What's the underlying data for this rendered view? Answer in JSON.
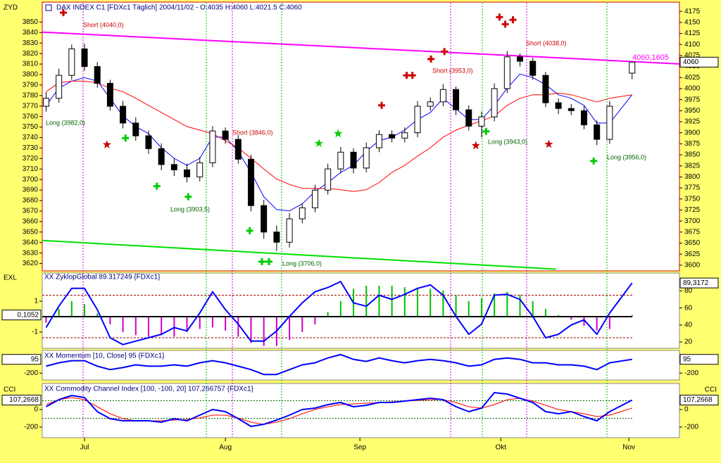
{
  "chart_data": [
    {
      "type": "candlestick",
      "title": "DAX INDEX C1 [FDXc1  Täglich] 2004/11/02 - O:4035 H:4060 L:4021.5 C:4060",
      "ylabel": "ZYD",
      "x": [
        -6,
        -4,
        -2,
        0,
        2,
        4,
        6,
        8,
        10,
        12,
        14,
        16,
        18,
        20,
        22,
        24,
        26,
        28,
        30,
        32,
        34,
        36,
        38,
        40,
        42,
        44,
        46,
        48,
        50,
        52,
        54,
        56,
        58,
        60,
        62,
        64,
        66,
        68,
        70,
        72,
        74,
        76,
        78,
        80,
        82,
        85.5
      ],
      "open": [
        3960,
        3978,
        4030,
        4090,
        4050,
        4012,
        3960,
        3922,
        3893,
        3864,
        3828,
        3816,
        3800,
        3832,
        3904,
        3885,
        3840,
        3735,
        3675,
        3652,
        3705,
        3730,
        3770,
        3818,
        3856,
        3820,
        3866,
        3896,
        3888,
        3900,
        3960,
        3970,
        3998,
        3952,
        3915,
        3936,
        4000,
        4072,
        4062,
        4030,
        3968,
        3955,
        3950,
        3918,
        3885,
        4035
      ],
      "high": [
        3992,
        4045,
        4100,
        4102,
        4060,
        4020,
        3972,
        3935,
        3905,
        3876,
        3842,
        3830,
        3845,
        3915,
        3912,
        3895,
        3850,
        3748,
        3690,
        3718,
        3740,
        3782,
        3830,
        3868,
        3865,
        3878,
        3906,
        3905,
        3912,
        3972,
        3980,
        4010,
        4005,
        3962,
        3948,
        4012,
        4085,
        4080,
        4070,
        4038,
        3978,
        3965,
        3960,
        3928,
        3972,
        4060
      ],
      "low": [
        3948,
        3968,
        4020,
        4040,
        4002,
        3950,
        3910,
        3882,
        3852,
        3815,
        3802,
        3788,
        3790,
        3822,
        3875,
        3830,
        3722,
        3660,
        3632,
        3640,
        3695,
        3720,
        3760,
        3808,
        3808,
        3810,
        3856,
        3878,
        3878,
        3890,
        3950,
        3960,
        3940,
        3905,
        3890,
        3926,
        3990,
        4050,
        4020,
        3958,
        3942,
        3940,
        3908,
        3872,
        3875,
        4021.5
      ],
      "close": [
        3978,
        4030,
        4090,
        4050,
        4012,
        3960,
        3922,
        3893,
        3864,
        3828,
        3816,
        3800,
        3832,
        3904,
        3885,
        3840,
        3735,
        3675,
        3652,
        3705,
        3730,
        3770,
        3818,
        3856,
        3820,
        3866,
        3896,
        3888,
        3900,
        3960,
        3970,
        3998,
        3952,
        3915,
        3936,
        4000,
        4072,
        4062,
        4030,
        3968,
        3955,
        3950,
        3918,
        3885,
        3960,
        4060
      ],
      "candle_up_color": "#ffffff",
      "candle_down_color": "#000000",
      "series": [
        {
          "color": "#0000ff",
          "axis": "y2",
          "values": [
            3962,
            4001,
            4017,
            4025,
            4017,
            3978,
            3938,
            3914,
            3898,
            3866,
            3842,
            3826,
            3842,
            3890,
            3890,
            3858,
            3810,
            3755,
            3726,
            3723,
            3739,
            3767,
            3787,
            3810,
            3826,
            3858,
            3882,
            3890,
            3906,
            3930,
            3946,
            3978,
            3954,
            3930,
            3930,
            3962,
            4001,
            4033,
            4025,
            4009,
            3986,
            3978,
            3962,
            3922,
            3922,
            3986
          ]
        },
        {
          "color": "#ff0000",
          "axis": "y2",
          "values": [
            3993,
            4013,
            4017,
            4017,
            4013,
            4001,
            3993,
            3978,
            3962,
            3946,
            3930,
            3914,
            3906,
            3898,
            3882,
            3866,
            3842,
            3818,
            3795,
            3783,
            3774,
            3774,
            3774,
            3771,
            3767,
            3771,
            3787,
            3810,
            3826,
            3847,
            3866,
            3890,
            3906,
            3917,
            3927,
            3938,
            3962,
            3978,
            3986,
            3986,
            3990,
            3986,
            3978,
            3970,
            3978,
            3986
          ]
        }
      ],
      "lines": [
        {
          "color": "#ff00ff",
          "axis": "y2",
          "x": [
            -6.6,
            92.9
          ],
          "values": [
            4128,
            4056
          ]
        },
        {
          "color": "#00e000",
          "axis": "y2",
          "x": [
            -6.6,
            73.6
          ],
          "values": [
            3656,
            3591
          ]
        }
      ],
      "line_label": {
        "value": 4060.1605,
        "label": "4060,1605",
        "color": "#ff00ff"
      },
      "markers": [
        {
          "shape": "plus",
          "color": "#cc0000",
          "x": [
            -3.3,
            46.4,
            50.3,
            51.2,
            54.1,
            56.2,
            64.8,
            65.7,
            66.9
          ],
          "values": [
            4172,
            3962,
            4030,
            4030,
            4067,
            4084,
            4162,
            4146,
            4156
          ]
        },
        {
          "shape": "plus",
          "color": "#00cc00",
          "x": [
            6.4,
            11.3,
            16.2,
            25.8,
            27.7,
            28.8,
            62.7,
            79.5
          ],
          "values": [
            3888,
            3779,
            3755,
            3678,
            3608,
            3608,
            3903,
            3836
          ]
        },
        {
          "shape": "star",
          "color": "#cc0000",
          "x": [
            3.5,
            61.1,
            72.5
          ],
          "values": [
            3873,
            3871,
            3874
          ]
        },
        {
          "shape": "star",
          "color": "#00cc00",
          "x": [
            36.6,
            39.6
          ],
          "values": [
            3876,
            3898
          ]
        }
      ],
      "annotations": [
        {
          "text": "Short (4040,0)",
          "color": "#cc0000"
        },
        {
          "text": "Long (3982,0)",
          "color": "#006600"
        },
        {
          "text": "Long (3903,5)",
          "color": "#006600"
        },
        {
          "text": "Short (3846,0)",
          "color": "#cc0000"
        },
        {
          "text": "Long (3706,0)",
          "color": "#006600"
        },
        {
          "text": "Short (3953,0)",
          "color": "#cc0000"
        },
        {
          "text": "Long (3943,0)",
          "color": "#006600"
        },
        {
          "text": "Short (4038,0)",
          "color": "#cc0000"
        },
        {
          "text": "Long (3956,0)",
          "color": "#006600"
        }
      ],
      "xlim": [
        -6.6,
        92.9
      ],
      "xticks": [
        {
          "value": 0,
          "label": "Jul"
        },
        {
          "value": 22,
          "label": "Aug"
        },
        {
          "value": 43,
          "label": "Sep"
        },
        {
          "value": 65,
          "label": "Okt"
        },
        {
          "value": 85,
          "label": "Nov"
        }
      ],
      "ylim": [
        3613,
        3869
      ],
      "yticks": [
        3620,
        3630,
        3640,
        3650,
        3660,
        3670,
        3680,
        3690,
        3700,
        3710,
        3720,
        3730,
        3740,
        3750,
        3760,
        3770,
        3780,
        3790,
        3800,
        3810,
        3820,
        3830,
        3840,
        3850
      ],
      "y2lim": [
        3587,
        4196
      ],
      "y2ticks": [
        3600,
        3625,
        3650,
        3675,
        3700,
        3725,
        3750,
        3775,
        3800,
        3825,
        3850,
        3875,
        3900,
        3925,
        3950,
        3975,
        4000,
        4025,
        4050,
        4075,
        4100,
        4125,
        4150,
        4175
      ]
    },
    {
      "type": "oscillator",
      "title": "XX ZyklopGlobal 89.317249 {FDXc1}",
      "ylabel": "EXL",
      "ylim": [
        -2.05,
        2.82
      ],
      "yticks": [
        1,
        -1
      ],
      "y2lim": [
        12.6,
        101
      ],
      "y2ticks": [
        80,
        60,
        40,
        20
      ],
      "levels": [
        75,
        25
      ],
      "level_color": "#990000",
      "histogram": {
        "pos_color": "#00c000",
        "neg_color": "#cc00cc",
        "values": [
          -0.4,
          0.5,
          1.0,
          0.8,
          0.2,
          -0.5,
          -1.0,
          -1.2,
          -1.3,
          -1.2,
          -1.3,
          -1.0,
          -0.8,
          -0.7,
          -0.9,
          -1.3,
          -1.7,
          -1.9,
          -1.9,
          -1.5,
          -1.0,
          -0.5,
          0.3,
          1.0,
          1.8,
          2.0,
          2.0,
          2.0,
          1.9,
          1.8,
          1.8,
          1.7,
          1.4,
          1.0,
          1.2,
          1.5,
          1.6,
          1.4,
          1.0,
          0.5,
          0.1,
          -0.2,
          -0.6,
          -0.9,
          -0.8,
          0.1052
        ],
        "current": {
          "value": 0.1052,
          "label": "0,1052"
        }
      },
      "series": [
        {
          "color": "#0000ff",
          "axis": "y2",
          "values": [
            37,
            62,
            83,
            83,
            58,
            25,
            17,
            21,
            25,
            29,
            37,
            33,
            54,
            79,
            58,
            41,
            21,
            21,
            33,
            50,
            66,
            79,
            84,
            91,
            66,
            62,
            75,
            70,
            76,
            83,
            87,
            75,
            50,
            29,
            41,
            75,
            76,
            70,
            50,
            25,
            29,
            40,
            46,
            29,
            54,
            89.3
          ],
          "current": {
            "value": 89.3172,
            "label": "89,3172"
          }
        }
      ]
    },
    {
      "type": "line",
      "title": "XX Momentum [10, Close] 95 {FDXc1}",
      "ylim": [
        -347.5,
        287
      ],
      "yticks": [
        -200
      ],
      "series": [
        {
          "color": "#0000ff",
          "values": [
            -52,
            21,
            66,
            66,
            -52,
            -126,
            -82,
            -23,
            -52,
            -52,
            -23,
            -52,
            21,
            66,
            21,
            -52,
            -126,
            -230,
            -230,
            -126,
            -23,
            21,
            125,
            198,
            95,
            51,
            125,
            66,
            21,
            66,
            95,
            66,
            21,
            -52,
            -23,
            95,
            125,
            95,
            21,
            21,
            -23,
            -23,
            -52,
            -126,
            21,
            95
          ],
          "current": 95
        }
      ]
    },
    {
      "type": "line",
      "title": "XX Commodity Channel Index [100, -100, 20] 107,266757 {FDXc1}",
      "ylabel": "CCI",
      "ylim": [
        -320,
        296
      ],
      "yticks": [
        0,
        -200
      ],
      "levels": [
        100,
        -100
      ],
      "level_color": "#006600",
      "series": [
        {
          "color": "#0000ff",
          "values": [
            32,
            112,
            160,
            136,
            -24,
            -104,
            -128,
            -128,
            -128,
            -144,
            -104,
            -128,
            -64,
            0,
            -24,
            -104,
            -192,
            -168,
            -120,
            -64,
            0,
            16,
            56,
            80,
            32,
            48,
            80,
            80,
            96,
            112,
            128,
            112,
            32,
            -24,
            16,
            192,
            176,
            128,
            80,
            -24,
            -48,
            -24,
            -80,
            -128,
            -24,
            107.27
          ],
          "current": {
            "value": 107.2668,
            "label": "107,2668"
          }
        },
        {
          "color": "#ff0000",
          "values": [
            56,
            112,
            136,
            112,
            32,
            -48,
            -104,
            -128,
            -128,
            -128,
            -120,
            -112,
            -96,
            -64,
            -64,
            -96,
            -144,
            -168,
            -144,
            -104,
            -48,
            0,
            32,
            56,
            64,
            72,
            80,
            88,
            96,
            104,
            112,
            112,
            80,
            32,
            16,
            56,
            112,
            128,
            96,
            48,
            0,
            -24,
            -48,
            -80,
            -64,
            16
          ]
        }
      ]
    }
  ]
}
